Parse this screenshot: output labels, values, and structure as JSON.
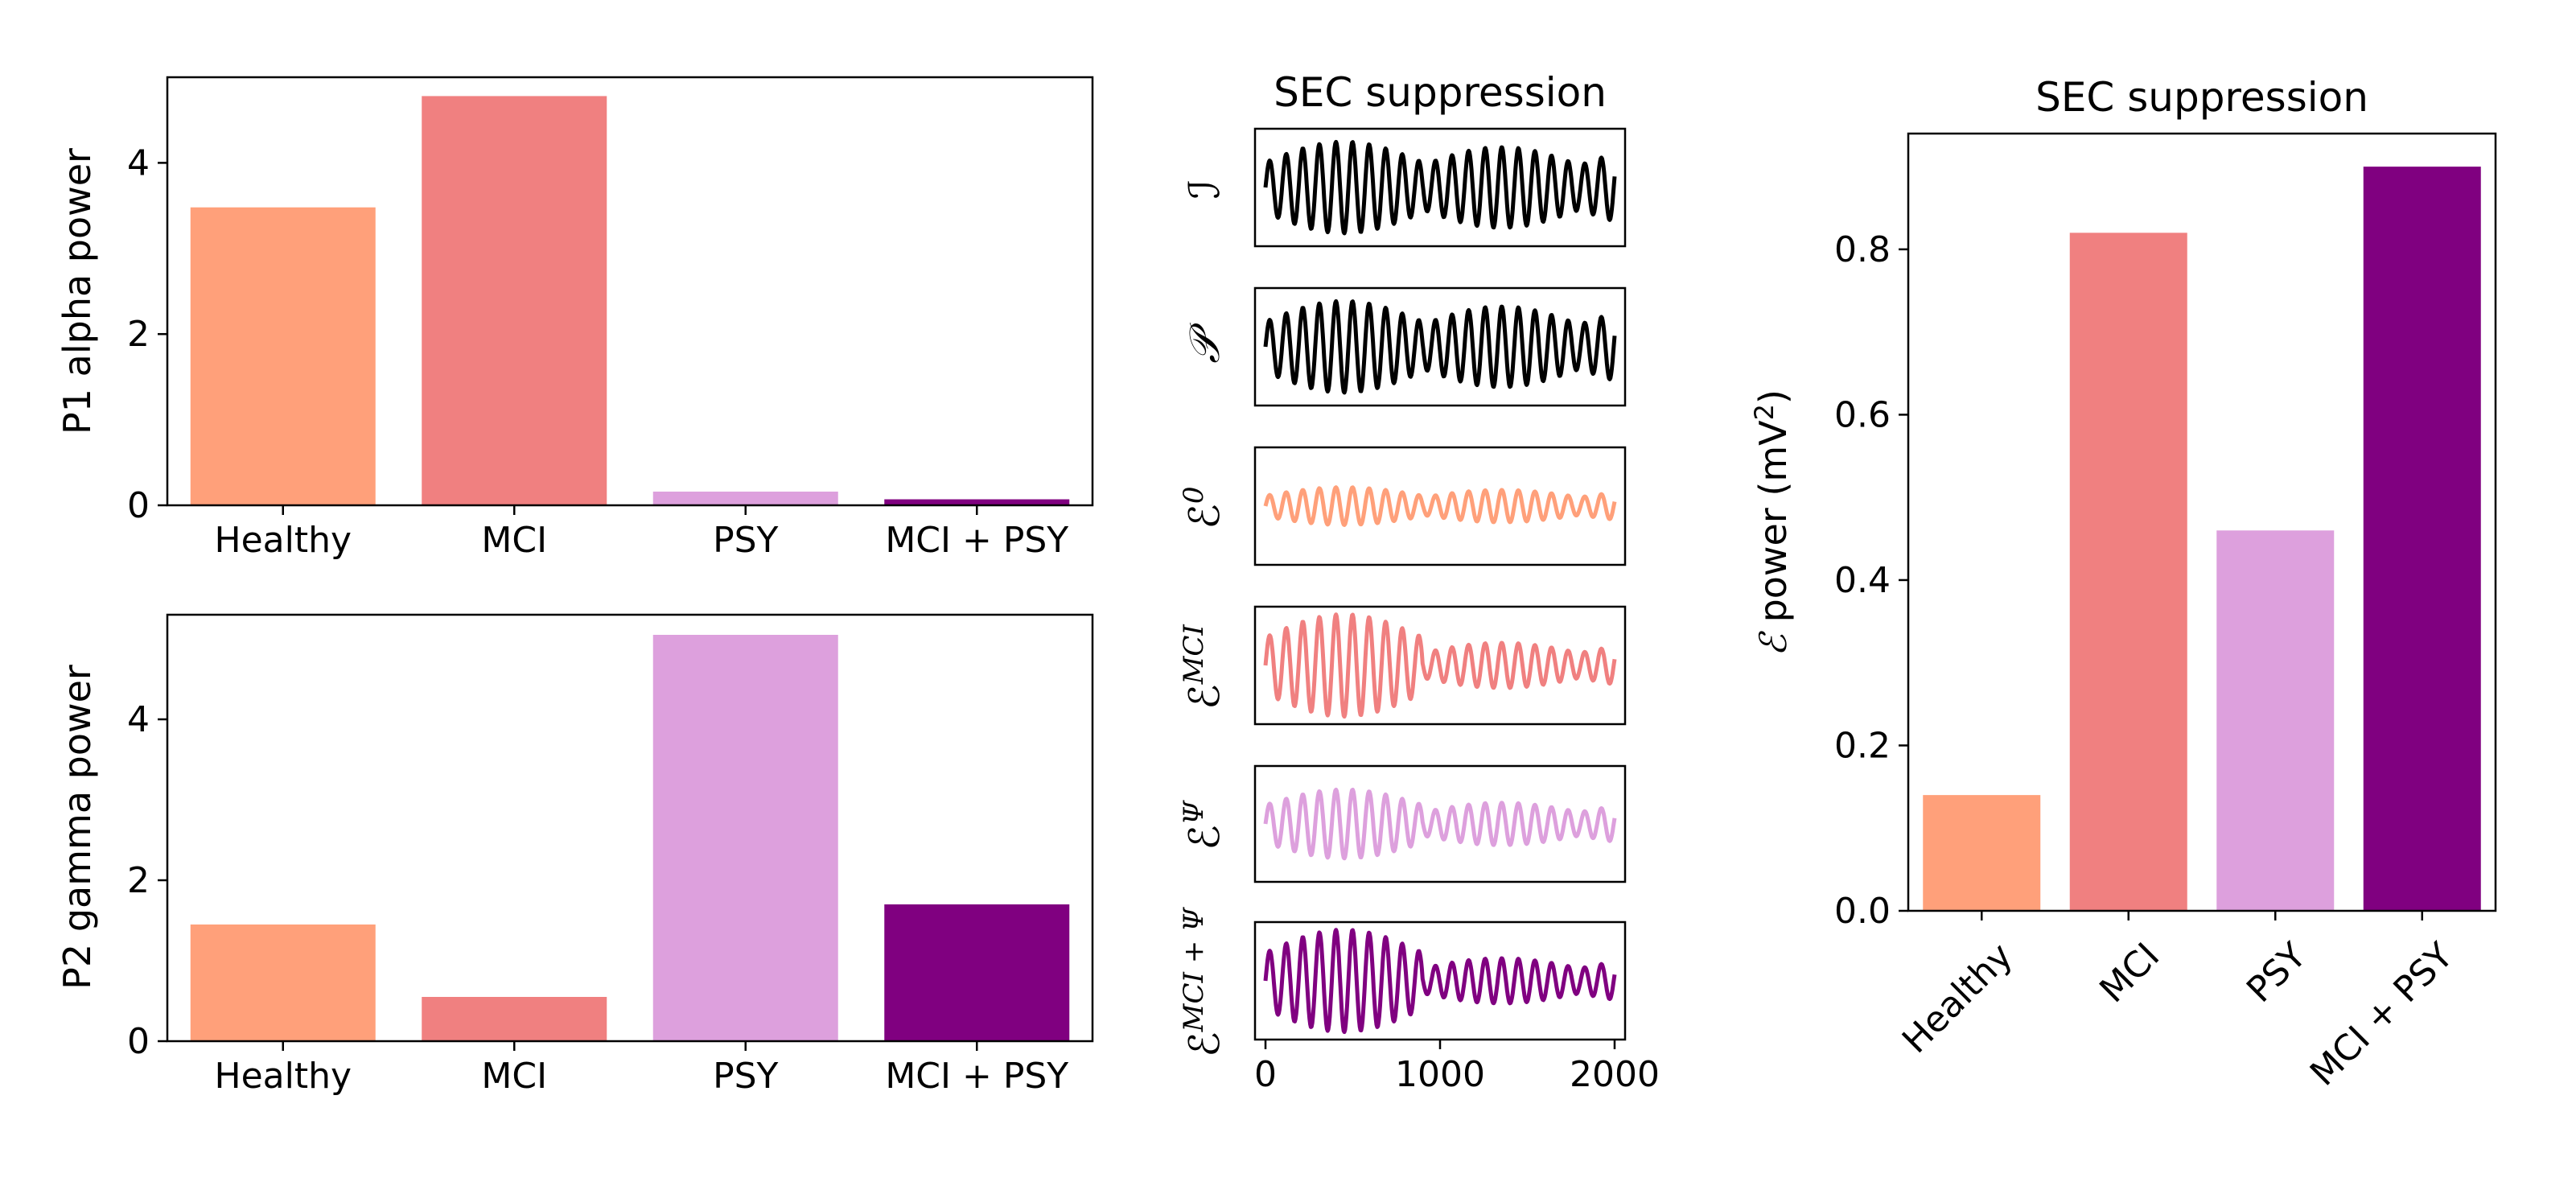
{
  "colors": {
    "healthy": "#FFA07A",
    "mci": "#F08080",
    "psy": "#DDA0DD",
    "mci_psy": "#800080",
    "signal": "#000000"
  },
  "chart_data": [
    {
      "id": "p1",
      "type": "bar",
      "categories": [
        "Healthy",
        "MCI",
        "PSY",
        "MCI + PSY"
      ],
      "values": [
        3.48,
        4.78,
        0.16,
        0.07
      ],
      "colors": [
        "#FFA07A",
        "#F08080",
        "#DDA0DD",
        "#800080"
      ],
      "title": "",
      "xlabel": "",
      "ylabel": "P1 alpha power",
      "ylim": [
        0,
        5.0
      ],
      "yticks": [
        0,
        2,
        4
      ],
      "ytick_labels": [
        "0",
        "2",
        "4"
      ],
      "grid": false
    },
    {
      "id": "p2",
      "type": "bar",
      "categories": [
        "Healthy",
        "MCI",
        "PSY",
        "MCI + PSY"
      ],
      "values": [
        1.45,
        0.55,
        5.05,
        1.7
      ],
      "colors": [
        "#FFA07A",
        "#F08080",
        "#DDA0DD",
        "#800080"
      ],
      "title": "",
      "xlabel": "",
      "ylabel": "P2 gamma power",
      "ylim": [
        0,
        5.3
      ],
      "yticks": [
        0,
        2,
        4
      ],
      "ytick_labels": [
        "0",
        "2",
        "4"
      ],
      "grid": false
    },
    {
      "id": "traces",
      "type": "line",
      "title": "SEC suppression",
      "xlim": [
        -60,
        2060
      ],
      "xticks": [
        0,
        1000,
        2000
      ],
      "xtick_labels": [
        "0",
        "1000",
        "2000"
      ],
      "series": [
        {
          "label_base": "ℐ",
          "label_sup": "",
          "color": "#000000",
          "amp": [
            0.85,
            0.75
          ]
        },
        {
          "label_base": "𝒫",
          "label_sup": "",
          "color": "#000000",
          "amp": [
            0.85,
            0.75
          ]
        },
        {
          "label_base": "ℰ",
          "label_sup": "0",
          "color": "#FFA07A",
          "amp": [
            0.35,
            0.3
          ]
        },
        {
          "label_base": "ℰ",
          "label_sup": "MCI",
          "color": "#F08080",
          "amp": [
            0.95,
            0.42
          ]
        },
        {
          "label_base": "ℰ",
          "label_sup": "Ψ",
          "color": "#DDA0DD",
          "amp": [
            0.65,
            0.4
          ]
        },
        {
          "label_base": "ℰ",
          "label_sup": "MCI + Ψ",
          "color": "#800080",
          "amp": [
            0.95,
            0.42
          ]
        }
      ],
      "grid": false
    },
    {
      "id": "epower",
      "type": "bar",
      "categories": [
        "Healthy",
        "MCI",
        "PSY",
        "MCI + PSY"
      ],
      "values": [
        0.14,
        0.82,
        0.46,
        0.9
      ],
      "colors": [
        "#FFA07A",
        "#F08080",
        "#DDA0DD",
        "#800080"
      ],
      "title": "SEC suppression",
      "xlabel": "",
      "ylabel_base": "power (mV",
      "ylabel_symbol": "ℰ",
      "ylabel_sup": "2",
      "ylabel_close": ")",
      "ylim": [
        0,
        0.94
      ],
      "yticks": [
        0.0,
        0.2,
        0.4,
        0.6,
        0.8
      ],
      "ytick_labels": [
        "0.0",
        "0.2",
        "0.4",
        "0.6",
        "0.8"
      ],
      "xtick_rotation_deg": 45,
      "grid": false
    }
  ]
}
